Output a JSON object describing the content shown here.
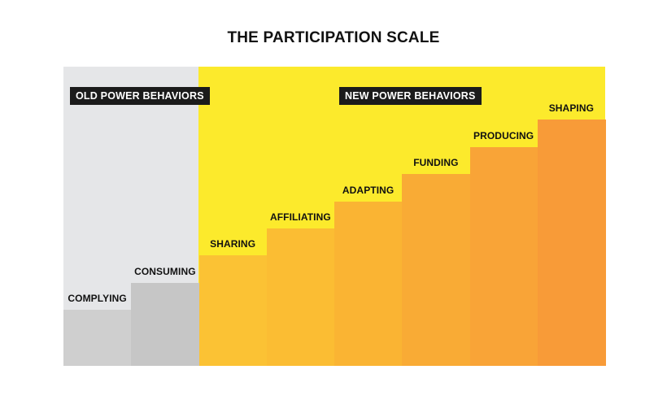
{
  "title": "THE PARTICIPATION SCALE",
  "groups": {
    "old": "OLD POWER BEHAVIORS",
    "new": "NEW POWER BEHAVIORS"
  },
  "steps": [
    {
      "label": "COMPLYING",
      "level": 1,
      "color": "#cfcfcf"
    },
    {
      "label": "CONSUMING",
      "level": 2,
      "color": "#c6c6c6"
    },
    {
      "label": "SHARING",
      "level": 3,
      "color": "#fbc234"
    },
    {
      "label": "AFFILIATING",
      "level": 4,
      "color": "#fbbd33"
    },
    {
      "label": "ADAPTING",
      "level": 5,
      "color": "#fab433"
    },
    {
      "label": "FUNDING",
      "level": 6,
      "color": "#f9ab35"
    },
    {
      "label": "PRODUCING",
      "level": 7,
      "color": "#f9a437"
    },
    {
      "label": "SHAPING",
      "level": 8,
      "color": "#f89b38"
    }
  ]
}
